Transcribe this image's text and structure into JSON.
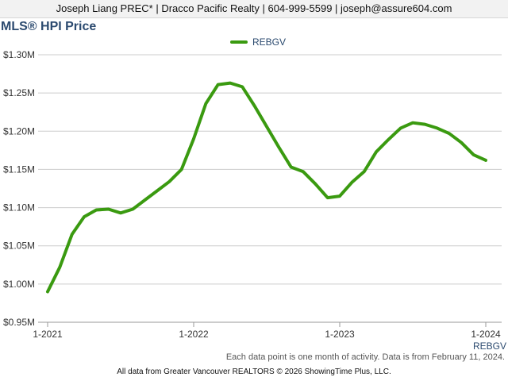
{
  "header": {
    "contact": "Joseph Liang PREC* | Dracco Pacific Realty | 604-999-5599 | joseph@assure604.com"
  },
  "colors": {
    "series": "#3a9a10",
    "title": "#2b4a6f",
    "grid": "#cccccc"
  },
  "chart_data": {
    "type": "line",
    "title": "MLS® HPI Price",
    "xlabel": "REBGV",
    "ylabel": "",
    "legend_position": "top-center",
    "grid": true,
    "ylim": [
      950000,
      1300000
    ],
    "y_ticks": [
      950000,
      1000000,
      1050000,
      1100000,
      1150000,
      1200000,
      1250000,
      1300000
    ],
    "y_tick_labels": [
      "$0.95M",
      "$1.00M",
      "$1.05M",
      "$1.10M",
      "$1.15M",
      "$1.20M",
      "$1.25M",
      "$1.30M"
    ],
    "x_tick_labels": [
      "1-2021",
      "1-2022",
      "1-2023",
      "1-2024"
    ],
    "series": [
      {
        "name": "REBGV",
        "x": [
          "2021-01",
          "2021-02",
          "2021-03",
          "2021-04",
          "2021-05",
          "2021-06",
          "2021-07",
          "2021-08",
          "2021-09",
          "2021-10",
          "2021-11",
          "2021-12",
          "2022-01",
          "2022-02",
          "2022-03",
          "2022-04",
          "2022-05",
          "2022-06",
          "2022-07",
          "2022-08",
          "2022-09",
          "2022-10",
          "2022-11",
          "2022-12",
          "2023-01",
          "2023-02",
          "2023-03",
          "2023-04",
          "2023-05",
          "2023-06",
          "2023-07",
          "2023-08",
          "2023-09",
          "2023-10",
          "2023-11",
          "2023-12",
          "2024-01"
        ],
        "values": [
          990000,
          1022000,
          1065000,
          1088000,
          1097000,
          1098000,
          1093000,
          1098000,
          1110000,
          1122000,
          1134000,
          1150000,
          1190000,
          1236000,
          1261000,
          1263000,
          1258000,
          1233000,
          1206000,
          1179000,
          1153000,
          1147000,
          1131000,
          1113000,
          1115000,
          1133000,
          1147000,
          1173000,
          1189000,
          1204000,
          1211000,
          1209000,
          1204000,
          1197000,
          1185000,
          1169000,
          1162000
        ]
      }
    ]
  },
  "footer": {
    "note": "Each data point is one month of activity. Data is from February 11, 2024.",
    "copyright": "All data from Greater Vancouver REALTORS © 2026 ShowingTime Plus, LLC."
  }
}
